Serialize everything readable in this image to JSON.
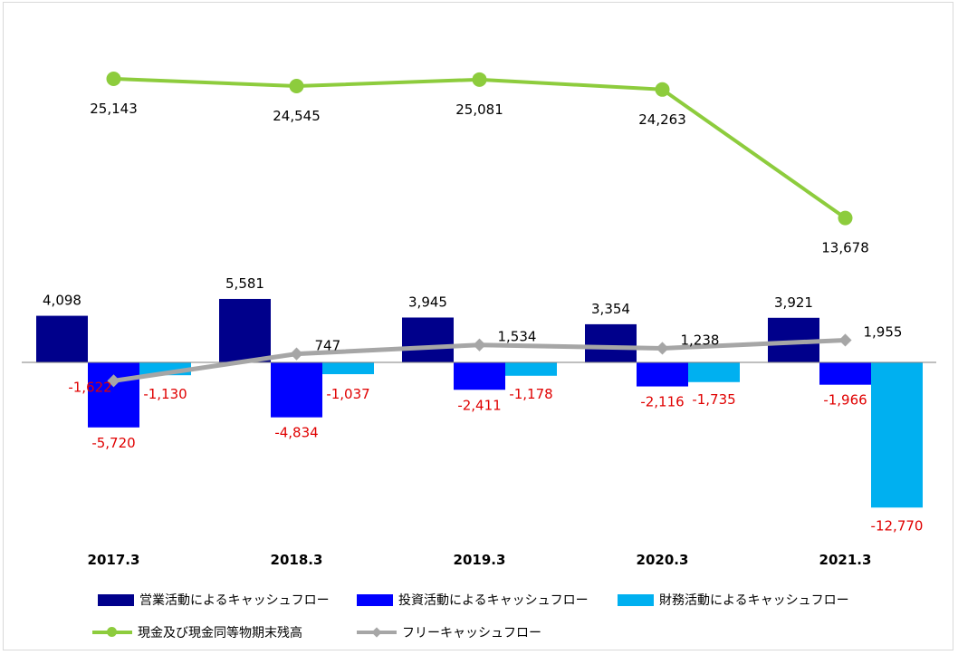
{
  "chart_data": {
    "type": "bar+line",
    "categories": [
      "2017.3",
      "2018.3",
      "2019.3",
      "2020.3",
      "2021.3"
    ],
    "series": [
      {
        "name": "営業活動によるキャッシュフロー",
        "kind": "bar",
        "color": "#00008b",
        "values": [
          4098,
          5581,
          3945,
          3354,
          3921
        ],
        "labels": [
          "4,098",
          "5,581",
          "3,945",
          "3,354",
          "3,921"
        ]
      },
      {
        "name": "投資活動によるキャッシュフロー",
        "kind": "bar",
        "color": "#0000ff",
        "values": [
          -5720,
          -4834,
          -2411,
          -2116,
          -1966
        ],
        "labels": [
          "-5,720",
          "-4,834",
          "-2,411",
          "-2,116",
          "-1,966"
        ]
      },
      {
        "name": "財務活動によるキャッシュフロー",
        "kind": "bar",
        "color": "#00b0f0",
        "values": [
          -1130,
          -1037,
          -1178,
          -1735,
          -12770
        ],
        "labels": [
          "-1,130",
          "-1,037",
          "-1,178",
          "-1,735",
          "-12,770"
        ]
      },
      {
        "name": "現金及び現金同等物期末残高",
        "kind": "line",
        "color": "#8dcc3d",
        "values": [
          25143,
          24545,
          25081,
          24263,
          13678
        ],
        "labels": [
          "25,143",
          "24,545",
          "25,081",
          "24,263",
          "13,678"
        ]
      },
      {
        "name": "フリーキャッシュフロー",
        "kind": "line",
        "color": "#a6a6a6",
        "values": [
          -1622,
          747,
          1534,
          1238,
          1955
        ],
        "labels": [
          "-1,622",
          "747",
          "1,534",
          "1,238",
          "1,955"
        ]
      }
    ],
    "negative_label_color": "#e00000",
    "positive_label_color": "#000000",
    "ylim_bars": [
      -15000,
      7000
    ],
    "ylim_balance": [
      0,
      30000
    ],
    "legend_position": "bottom",
    "grid": false
  }
}
